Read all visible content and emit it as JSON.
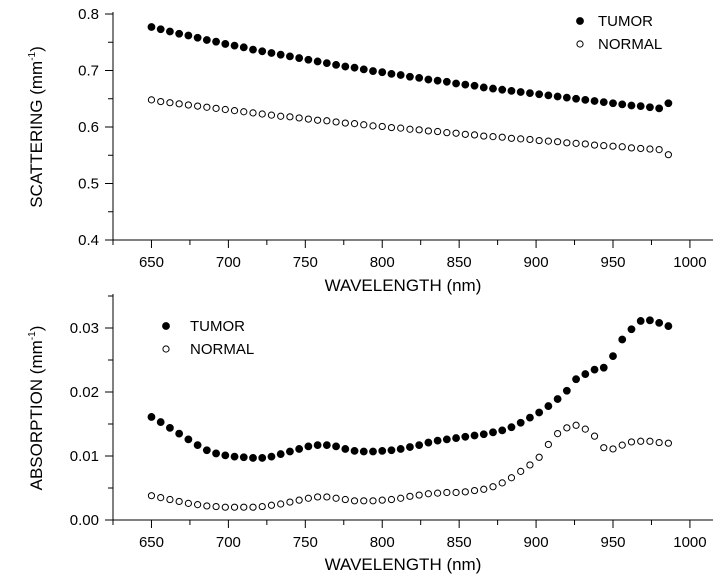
{
  "chart_data": [
    {
      "type": "scatter",
      "title": "",
      "xlabel": "WAVELENGTH (nm)",
      "ylabel": "SCATTERING (mm",
      "ylabel_sup": "-1",
      "ylabel_close": ")",
      "xlim": [
        625,
        1015
      ],
      "ylim": [
        0.4,
        0.8
      ],
      "x_ticks": [
        650,
        700,
        750,
        800,
        850,
        900,
        950,
        1000
      ],
      "x_tick_labels": [
        "650",
        "700",
        "750",
        "800",
        "850",
        "900",
        "950",
        "1000"
      ],
      "y_ticks": [
        0.4,
        0.5,
        0.6,
        0.7,
        0.8
      ],
      "y_tick_labels": [
        "0.4",
        "0.5",
        "0.6",
        "0.7",
        "0.8"
      ],
      "grid": false,
      "legend_position": "top-right",
      "series": [
        {
          "name": "TUMOR",
          "marker": "filled-circle",
          "x": [
            650,
            656,
            662,
            668,
            674,
            680,
            686,
            692,
            698,
            704,
            710,
            716,
            722,
            728,
            734,
            740,
            746,
            752,
            758,
            764,
            770,
            776,
            782,
            788,
            794,
            800,
            806,
            812,
            818,
            824,
            830,
            836,
            842,
            848,
            854,
            860,
            866,
            872,
            878,
            884,
            890,
            896,
            902,
            908,
            914,
            920,
            926,
            932,
            938,
            944,
            950,
            956,
            962,
            968,
            974,
            980,
            986
          ],
          "y": [
            0.777,
            0.773,
            0.769,
            0.765,
            0.762,
            0.758,
            0.754,
            0.751,
            0.747,
            0.744,
            0.741,
            0.737,
            0.734,
            0.731,
            0.728,
            0.725,
            0.722,
            0.719,
            0.716,
            0.713,
            0.71,
            0.707,
            0.705,
            0.702,
            0.699,
            0.697,
            0.694,
            0.692,
            0.689,
            0.687,
            0.684,
            0.682,
            0.68,
            0.677,
            0.675,
            0.673,
            0.67,
            0.668,
            0.666,
            0.664,
            0.662,
            0.66,
            0.658,
            0.656,
            0.654,
            0.652,
            0.65,
            0.648,
            0.646,
            0.644,
            0.642,
            0.64,
            0.638,
            0.637,
            0.635,
            0.633,
            0.642
          ]
        },
        {
          "name": "NORMAL",
          "marker": "open-circle",
          "x": [
            650,
            656,
            662,
            668,
            674,
            680,
            686,
            692,
            698,
            704,
            710,
            716,
            722,
            728,
            734,
            740,
            746,
            752,
            758,
            764,
            770,
            776,
            782,
            788,
            794,
            800,
            806,
            812,
            818,
            824,
            830,
            836,
            842,
            848,
            854,
            860,
            866,
            872,
            878,
            884,
            890,
            896,
            902,
            908,
            914,
            920,
            926,
            932,
            938,
            944,
            950,
            956,
            962,
            968,
            974,
            980,
            986
          ],
          "y": [
            0.648,
            0.645,
            0.643,
            0.641,
            0.639,
            0.637,
            0.635,
            0.633,
            0.631,
            0.629,
            0.627,
            0.625,
            0.623,
            0.621,
            0.619,
            0.618,
            0.616,
            0.614,
            0.612,
            0.611,
            0.609,
            0.607,
            0.606,
            0.604,
            0.602,
            0.601,
            0.599,
            0.598,
            0.596,
            0.595,
            0.593,
            0.592,
            0.59,
            0.589,
            0.587,
            0.586,
            0.584,
            0.583,
            0.582,
            0.58,
            0.579,
            0.578,
            0.576,
            0.575,
            0.574,
            0.572,
            0.571,
            0.57,
            0.568,
            0.567,
            0.566,
            0.565,
            0.563,
            0.562,
            0.561,
            0.56,
            0.551
          ]
        }
      ]
    },
    {
      "type": "scatter",
      "title": "",
      "xlabel": "WAVELENGTH (nm)",
      "ylabel": "ABSORPTION (mm",
      "ylabel_sup": "-1",
      "ylabel_close": ")",
      "xlim": [
        625,
        1015
      ],
      "ylim": [
        0,
        0.035
      ],
      "x_ticks": [
        650,
        700,
        750,
        800,
        850,
        900,
        950,
        1000
      ],
      "x_tick_labels": [
        "650",
        "700",
        "750",
        "800",
        "850",
        "900",
        "950",
        "1000"
      ],
      "y_ticks": [
        0,
        0.01,
        0.02,
        0.03
      ],
      "y_tick_labels": [
        "0.00",
        "0.01",
        "0.02",
        "0.03"
      ],
      "grid": false,
      "legend_position": "top-left",
      "series": [
        {
          "name": "TUMOR",
          "marker": "filled-circle",
          "x": [
            650,
            656,
            662,
            668,
            674,
            680,
            686,
            692,
            698,
            704,
            710,
            716,
            722,
            728,
            734,
            740,
            746,
            752,
            758,
            764,
            770,
            776,
            782,
            788,
            794,
            800,
            806,
            812,
            818,
            824,
            830,
            836,
            842,
            848,
            854,
            860,
            866,
            872,
            878,
            884,
            890,
            896,
            902,
            908,
            914,
            920,
            926,
            932,
            938,
            944,
            950,
            956,
            962,
            968,
            974,
            980,
            986
          ],
          "y": [
            0.0161,
            0.0153,
            0.0144,
            0.0135,
            0.0126,
            0.0117,
            0.0109,
            0.0104,
            0.0101,
            0.0099,
            0.0098,
            0.0097,
            0.0097,
            0.0099,
            0.0103,
            0.0107,
            0.0111,
            0.0115,
            0.0117,
            0.0117,
            0.0115,
            0.0111,
            0.0108,
            0.0107,
            0.0107,
            0.0108,
            0.0109,
            0.0111,
            0.0114,
            0.0117,
            0.0121,
            0.0124,
            0.0126,
            0.0128,
            0.013,
            0.0132,
            0.0134,
            0.0137,
            0.014,
            0.0145,
            0.0152,
            0.016,
            0.0168,
            0.0178,
            0.0189,
            0.0202,
            0.022,
            0.0228,
            0.0235,
            0.0238,
            0.0256,
            0.0282,
            0.0298,
            0.0311,
            0.0312,
            0.0308,
            0.0303
          ]
        },
        {
          "name": "NORMAL",
          "marker": "open-circle",
          "x": [
            650,
            656,
            662,
            668,
            674,
            680,
            686,
            692,
            698,
            704,
            710,
            716,
            722,
            728,
            734,
            740,
            746,
            752,
            758,
            764,
            770,
            776,
            782,
            788,
            794,
            800,
            806,
            812,
            818,
            824,
            830,
            836,
            842,
            848,
            854,
            860,
            866,
            872,
            878,
            884,
            890,
            896,
            902,
            908,
            914,
            920,
            926,
            932,
            938,
            944,
            950,
            956,
            962,
            968,
            974,
            980,
            986
          ],
          "y": [
            0.0038,
            0.0035,
            0.0032,
            0.0029,
            0.0026,
            0.0024,
            0.0022,
            0.0021,
            0.002,
            0.002,
            0.002,
            0.002,
            0.0021,
            0.0023,
            0.0025,
            0.0028,
            0.0031,
            0.0034,
            0.0036,
            0.0036,
            0.0034,
            0.0032,
            0.003,
            0.003,
            0.003,
            0.0031,
            0.0032,
            0.0034,
            0.0037,
            0.0039,
            0.0041,
            0.0042,
            0.0043,
            0.0043,
            0.0044,
            0.0046,
            0.0048,
            0.0052,
            0.0058,
            0.0066,
            0.0076,
            0.0086,
            0.0098,
            0.0118,
            0.0135,
            0.0144,
            0.0148,
            0.0142,
            0.0131,
            0.0113,
            0.0111,
            0.0117,
            0.0122,
            0.0123,
            0.0123,
            0.0121,
            0.012
          ]
        }
      ]
    }
  ]
}
